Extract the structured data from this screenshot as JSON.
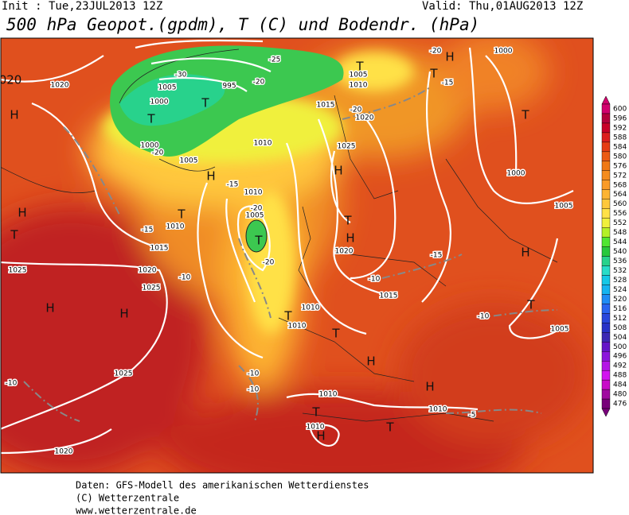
{
  "header": {
    "init": "Init : Tue,23JUL2013 12Z",
    "valid": "Valid: Thu,01AUG2013 12Z",
    "title": "500 hPa Geopot.(gpdm), T (C) und Bodendr. (hPa)"
  },
  "colorbar": {
    "levels": [
      600,
      596,
      592,
      588,
      584,
      580,
      576,
      572,
      568,
      564,
      560,
      556,
      552,
      548,
      544,
      540,
      536,
      532,
      528,
      524,
      520,
      516,
      512,
      508,
      504,
      500,
      496,
      492,
      488,
      484,
      480,
      476
    ],
    "colors": [
      "#d2006e",
      "#b4003c",
      "#c80028",
      "#dc1e1e",
      "#e63c14",
      "#eb5a14",
      "#f07814",
      "#f58c1e",
      "#fa9b28",
      "#fdb432",
      "#ffc83c",
      "#ffe146",
      "#f0f03c",
      "#b4f028",
      "#50e632",
      "#28c83c",
      "#28d28c",
      "#28dcc8",
      "#14c8e6",
      "#14b4f0",
      "#1e8cf5",
      "#2864f0",
      "#2846dc",
      "#2832c8",
      "#3c28b4",
      "#6414c8",
      "#8c14dc",
      "#b414e6",
      "#d214f0",
      "#c80ac8",
      "#a00aa0",
      "#78007a"
    ]
  },
  "map_labels": [
    "H",
    "T",
    "T",
    1020,
    1005,
    995,
    1000,
    -30,
    -25,
    -20,
    1000,
    -20,
    1005,
    "H",
    -15,
    1010,
    1005,
    "T",
    -20,
    -20,
    "T",
    1010,
    -15,
    "H",
    "T",
    1015,
    1025,
    1020,
    -10,
    1025,
    "H",
    "H",
    1025,
    -10,
    1020,
    "T",
    1010,
    1010,
    "T",
    "H",
    -10,
    -10,
    1010,
    "T",
    1010,
    "H",
    "T",
    "H",
    1010,
    -5,
    -10,
    1005,
    "T",
    "H",
    1005,
    1000,
    "T",
    1000,
    "H",
    -20,
    "T",
    -15,
    1005,
    1010,
    "T",
    1015,
    -20,
    1020,
    1025,
    "H",
    "T",
    "H",
    1020,
    -15,
    1015,
    -10,
    1010,
    "020"
  ],
  "footer": [
    "Daten: GFS-Modell des amerikanischen Wetterdienstes",
    "(C) Wetterzentrale",
    "www.wetterzentrale.de"
  ]
}
